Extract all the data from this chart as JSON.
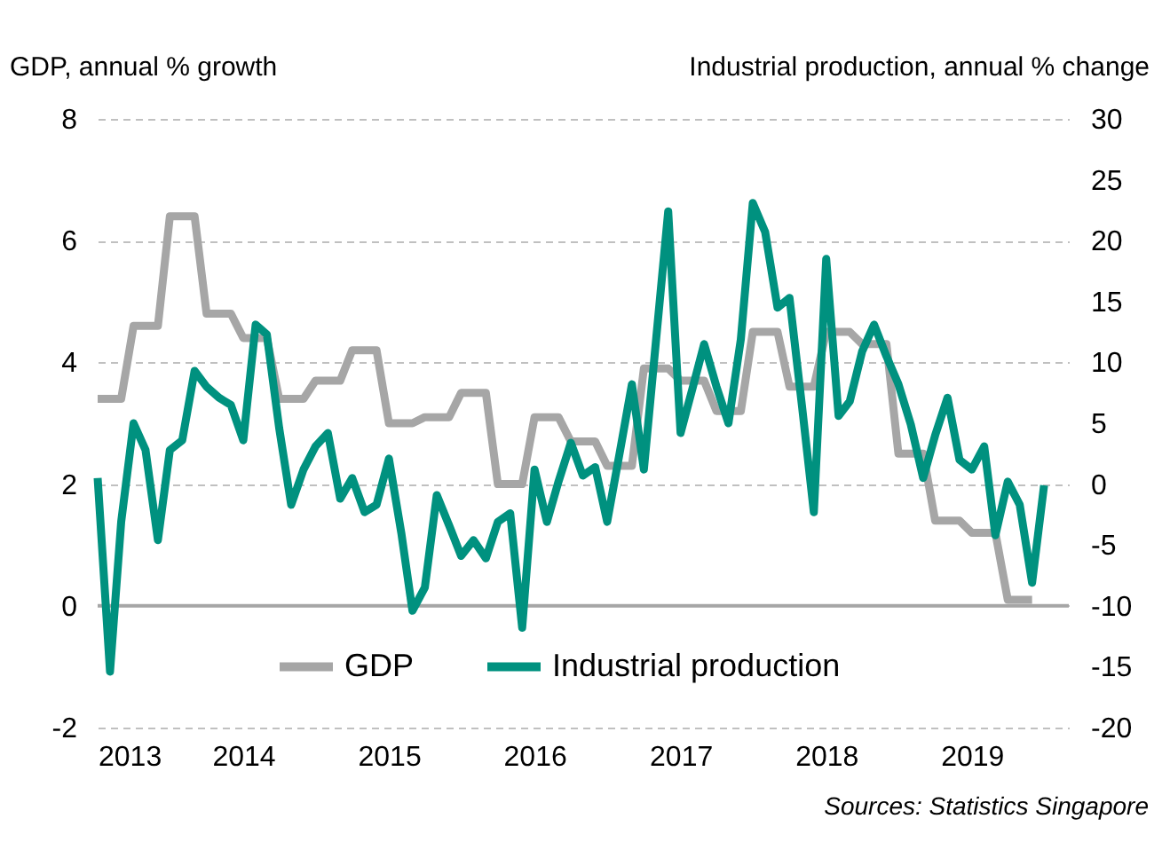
{
  "chart_data": {
    "type": "line",
    "ylabel": "GDP, annual % growth",
    "y2label": "Industrial production, annual % change",
    "annotations": [
      "Sources: Statistics Singapore"
    ],
    "x": [
      "2013-01",
      "2013-02",
      "2013-03",
      "2013-04",
      "2013-05",
      "2013-06",
      "2013-07",
      "2013-08",
      "2013-09",
      "2013-10",
      "2013-11",
      "2013-12",
      "2014-01",
      "2014-02",
      "2014-03",
      "2014-04",
      "2014-05",
      "2014-06",
      "2014-07",
      "2014-08",
      "2014-09",
      "2014-10",
      "2014-11",
      "2014-12",
      "2015-01",
      "2015-02",
      "2015-03",
      "2015-04",
      "2015-05",
      "2015-06",
      "2015-07",
      "2015-08",
      "2015-09",
      "2015-10",
      "2015-11",
      "2015-12",
      "2016-01",
      "2016-02",
      "2016-03",
      "2016-04",
      "2016-05",
      "2016-06",
      "2016-07",
      "2016-08",
      "2016-09",
      "2016-10",
      "2016-11",
      "2016-12",
      "2017-01",
      "2017-02",
      "2017-03",
      "2017-04",
      "2017-05",
      "2017-06",
      "2017-07",
      "2017-08",
      "2017-09",
      "2017-10",
      "2017-11",
      "2017-12",
      "2018-01",
      "2018-02",
      "2018-03",
      "2018-04",
      "2018-05",
      "2018-06",
      "2018-07",
      "2018-08",
      "2018-09",
      "2018-10",
      "2018-11",
      "2018-12",
      "2019-01",
      "2019-02",
      "2019-03",
      "2019-04",
      "2019-05",
      "2019-06",
      "2019-07"
    ],
    "series": [
      {
        "name": "GDP",
        "color": "#a6a6a6",
        "values": [
          3.4,
          3.4,
          3.4,
          4.6,
          4.6,
          4.6,
          6.4,
          6.4,
          6.4,
          4.8,
          4.8,
          4.8,
          4.4,
          4.4,
          4.4,
          3.4,
          3.4,
          3.4,
          3.7,
          3.7,
          3.7,
          4.2,
          4.2,
          4.2,
          3.0,
          3.0,
          3.0,
          3.1,
          3.1,
          3.1,
          3.5,
          3.5,
          3.5,
          2.0,
          2.0,
          2.0,
          3.1,
          3.1,
          3.1,
          2.7,
          2.7,
          2.7,
          2.3,
          2.3,
          2.3,
          3.9,
          3.9,
          3.9,
          3.7,
          3.7,
          3.7,
          3.2,
          3.2,
          3.2,
          4.5,
          4.5,
          4.5,
          3.6,
          3.6,
          3.6,
          4.5,
          4.5,
          4.5,
          4.3,
          4.3,
          4.3,
          2.5,
          2.5,
          2.5,
          1.4,
          1.4,
          1.4,
          1.2,
          1.2,
          1.2,
          0.1,
          0.1,
          0.1,
          null
        ]
      },
      {
        "name": "Industrial production",
        "color": "#00917f",
        "axis": "y2",
        "values": [
          0.5,
          -15.4,
          -3.1,
          5.0,
          2.8,
          -4.6,
          2.8,
          3.6,
          9.3,
          8.0,
          7.1,
          6.5,
          3.6,
          13.1,
          12.3,
          4.6,
          -1.7,
          1.2,
          3.1,
          4.2,
          -1.2,
          0.5,
          -2.3,
          -1.7,
          2.1,
          -4.0,
          -10.4,
          -8.5,
          -0.9,
          -3.4,
          -5.9,
          -4.6,
          -6.1,
          -3.1,
          -2.4,
          -11.8,
          1.2,
          -3.1,
          0.2,
          3.4,
          0.7,
          1.4,
          -3.1,
          2.5,
          8.2,
          1.2,
          12.0,
          22.4,
          4.2,
          8.0,
          11.5,
          8.0,
          5.0,
          11.9,
          23.1,
          20.7,
          14.5,
          15.3,
          6.5,
          -2.3,
          18.5,
          5.6,
          6.8,
          10.9,
          13.1,
          10.5,
          8.2,
          4.9,
          0.5,
          4.0,
          7.1,
          2.0,
          1.2,
          3.1,
          -4.2,
          0.2,
          -1.7,
          -8.1,
          -0.1
        ]
      }
    ],
    "xlim": [
      "2013-01",
      "2019-09"
    ],
    "xticks": [
      {
        "value": "2013-01",
        "label": "2013"
      },
      {
        "value": "2014-01",
        "label": "2014"
      },
      {
        "value": "2015-01",
        "label": "2015"
      },
      {
        "value": "2016-01",
        "label": "2016"
      },
      {
        "value": "2017-01",
        "label": "2017"
      },
      {
        "value": "2018-01",
        "label": "2018"
      },
      {
        "value": "2019-01",
        "label": "2019"
      }
    ],
    "ylim": [
      -2,
      8
    ],
    "yticks": [
      -2,
      0,
      2,
      4,
      6,
      8
    ],
    "y2lim": [
      -20,
      30
    ],
    "y2ticks": [
      -20,
      -15,
      -10,
      -5,
      0,
      5,
      10,
      15,
      20,
      25,
      30
    ],
    "ref_lines": [
      {
        "axis": "y",
        "value": 0,
        "color": "#a6a6a6",
        "line_style": "solid"
      }
    ],
    "grid": "y",
    "legend": "bottom",
    "line_style": "solid",
    "marker": "none"
  }
}
